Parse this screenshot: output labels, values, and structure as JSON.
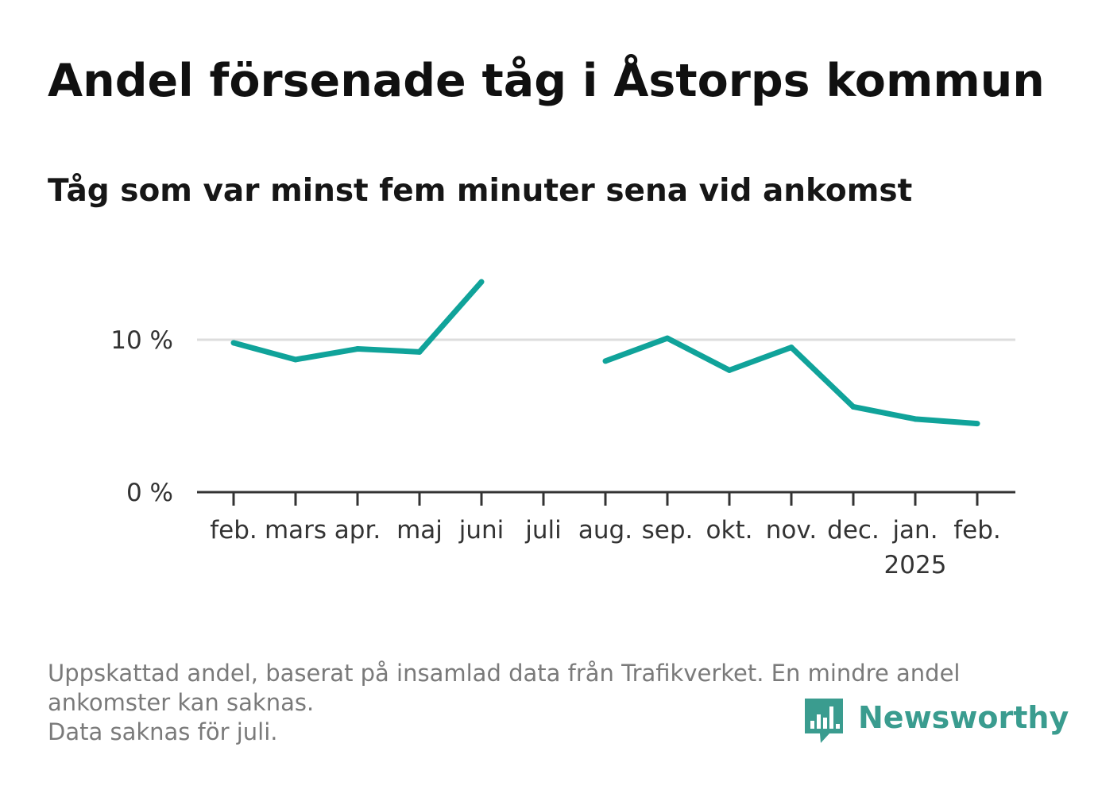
{
  "title": "Andel försenade tåg i Åstorps kommun",
  "subtitle": "Tåg som var minst fem minuter sena vid ankomst",
  "colors": {
    "line": "#10a39a",
    "grid": "#dddddd",
    "axis": "#333333",
    "brand": "#3a9c8f"
  },
  "chart_data": {
    "type": "line",
    "categories": [
      "feb.",
      "mars",
      "apr.",
      "maj",
      "juni",
      "juli",
      "aug.",
      "sep.",
      "okt.",
      "nov.",
      "dec.",
      "jan.",
      "feb."
    ],
    "year_label": "2025",
    "year_label_under": "jan.",
    "series": [
      {
        "values": [
          9.8,
          8.7,
          9.4,
          9.2,
          13.8,
          null,
          8.6,
          10.1,
          8.0,
          9.5,
          5.6,
          4.8,
          4.5
        ]
      }
    ],
    "yticks": [
      0,
      10
    ],
    "ytick_labels": [
      "0 %",
      "10 %"
    ],
    "ylim": [
      0,
      14
    ],
    "xlabel": "",
    "ylabel": "",
    "grid": true
  },
  "footnote": {
    "line1": "Uppskattad andel, baserat på insamlad data från Trafikverket. En mindre andel",
    "line2": "ankomster kan saknas.",
    "line3": "Data saknas för juli."
  },
  "logo": {
    "text": "Newsworthy",
    "icon": "newsworthy-bar-chart-icon"
  }
}
